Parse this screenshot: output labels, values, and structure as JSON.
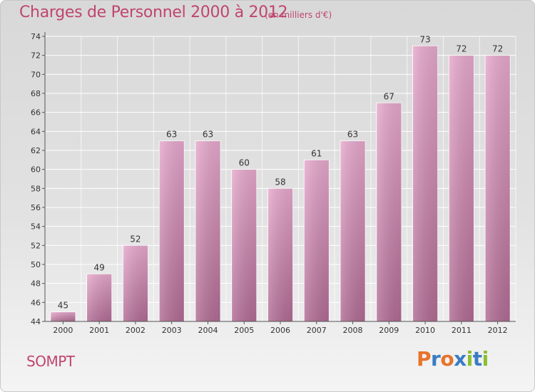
{
  "header": {
    "title": "Charges de Personnel 2000 à 2012",
    "subtitle": "(en milliers d'€)"
  },
  "footer": {
    "commune": "SOMPT",
    "logo_letters": [
      "P",
      "r",
      "o",
      "x",
      "i",
      "t",
      "i"
    ],
    "logo_colors": [
      "#e8732a",
      "#3a7cc4",
      "#e8732a",
      "#3a7cc4",
      "#8bbf2f",
      "#3a7cc4",
      "#8bbf2f"
    ]
  },
  "chart_data": {
    "type": "bar",
    "title": "Charges de Personnel 2000 à 2012",
    "subtitle": "(en milliers d'€)",
    "categories": [
      "2000",
      "2001",
      "2002",
      "2003",
      "2004",
      "2005",
      "2006",
      "2007",
      "2008",
      "2009",
      "2010",
      "2011",
      "2012"
    ],
    "values": [
      45,
      49,
      52,
      63,
      63,
      60,
      58,
      61,
      63,
      67,
      73,
      72,
      72
    ],
    "ylim": [
      44,
      74
    ],
    "yticks": [
      44,
      46,
      48,
      50,
      52,
      54,
      56,
      58,
      60,
      62,
      64,
      66,
      68,
      70,
      72,
      74
    ],
    "grid": true,
    "bar_color_top": "#e6a8cc",
    "bar_color_bottom": "#b06b93"
  }
}
